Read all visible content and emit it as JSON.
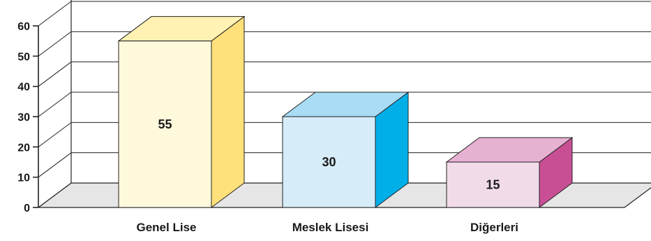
{
  "chart_data": {
    "type": "bar",
    "style": "3d",
    "categories": [
      "Genel Lise",
      "Meslek Lisesi",
      "Diğerleri"
    ],
    "values": [
      55,
      30,
      15
    ],
    "data_labels": [
      "55",
      "30",
      "15"
    ],
    "y_ticks": [
      "0",
      "10",
      "20",
      "30",
      "40",
      "50",
      "60"
    ],
    "ylim": [
      0,
      60
    ],
    "grid": true,
    "bar_colors": [
      {
        "front": "#fff9dc",
        "side": "#ffe07a",
        "top": "#fff2b3"
      },
      {
        "front": "#d6ecf9",
        "side": "#00aee8",
        "top": "#a9dcf5"
      },
      {
        "front": "#f2dbe9",
        "side": "#c94f95",
        "top": "#e7b1d2"
      }
    ],
    "floor_color": "#e6e6e6"
  }
}
